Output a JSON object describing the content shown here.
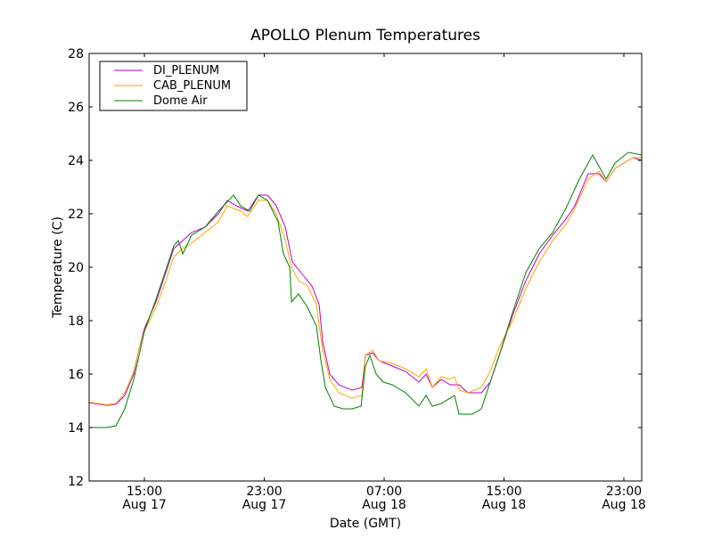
{
  "chart_data": {
    "type": "line",
    "title": "APOLLO Plenum Temperatures",
    "xlabel": "Date (GMT)",
    "ylabel": "Temperature (C)",
    "x_units": "hours since Aug 17 00:00 GMT",
    "xlim": [
      11.31,
      48.19
    ],
    "ylim": [
      12,
      28
    ],
    "yticks": [
      12,
      14,
      16,
      18,
      20,
      22,
      24,
      26,
      28
    ],
    "xticks": [
      {
        "value": 15,
        "time": "15:00",
        "date": "Aug 17"
      },
      {
        "value": 23,
        "time": "23:00",
        "date": "Aug 17"
      },
      {
        "value": 31,
        "time": "07:00",
        "date": "Aug 18"
      },
      {
        "value": 39,
        "time": "15:00",
        "date": "Aug 18"
      },
      {
        "value": 47,
        "time": "23:00",
        "date": "Aug 18"
      }
    ],
    "legend_position": "top-left",
    "grid": false,
    "series": [
      {
        "name": "DI_PLENUM",
        "color": "#bf00bf",
        "points": [
          [
            11.31,
            14.93
          ],
          [
            12.5,
            14.83
          ],
          [
            13.1,
            14.87
          ],
          [
            13.69,
            15.2
          ],
          [
            14.29,
            16.0
          ],
          [
            14.58,
            16.8
          ],
          [
            15,
            17.7
          ],
          [
            15.77,
            18.7
          ],
          [
            16.37,
            19.7
          ],
          [
            16.96,
            20.7
          ],
          [
            17.56,
            21.0
          ],
          [
            18.15,
            21.3
          ],
          [
            19.05,
            21.5
          ],
          [
            19.94,
            22.0
          ],
          [
            20.53,
            22.5
          ],
          [
            21.13,
            22.3
          ],
          [
            21.9,
            22.1
          ],
          [
            22.61,
            22.7
          ],
          [
            23.21,
            22.7
          ],
          [
            23.8,
            22.3
          ],
          [
            24.4,
            21.5
          ],
          [
            24.88,
            20.2
          ],
          [
            25.59,
            19.7
          ],
          [
            26.18,
            19.3
          ],
          [
            26.66,
            18.6
          ],
          [
            26.9,
            17.2
          ],
          [
            27.37,
            16.0
          ],
          [
            27.97,
            15.6
          ],
          [
            28.86,
            15.4
          ],
          [
            29.52,
            15.5
          ],
          [
            29.75,
            16.7
          ],
          [
            30.23,
            16.8
          ],
          [
            30.65,
            16.5
          ],
          [
            31.54,
            16.3
          ],
          [
            32.43,
            16.1
          ],
          [
            33.32,
            15.7
          ],
          [
            33.8,
            16.0
          ],
          [
            34.21,
            15.5
          ],
          [
            34.81,
            15.8
          ],
          [
            35.4,
            15.6
          ],
          [
            36.0,
            15.6
          ],
          [
            36.59,
            15.3
          ],
          [
            37.49,
            15.3
          ],
          [
            38.08,
            15.7
          ],
          [
            38.68,
            16.7
          ],
          [
            39.57,
            18.2
          ],
          [
            40.46,
            19.5
          ],
          [
            41.35,
            20.5
          ],
          [
            42.25,
            21.2
          ],
          [
            43.13,
            21.8
          ],
          [
            43.73,
            22.3
          ],
          [
            44.62,
            23.5
          ],
          [
            45.34,
            23.5
          ],
          [
            45.81,
            23.2
          ],
          [
            46.41,
            23.7
          ],
          [
            47.0,
            23.9
          ],
          [
            47.6,
            24.1
          ],
          [
            48.19,
            24.0
          ]
        ]
      },
      {
        "name": "CAB_PLENUM",
        "color": "#ffa500",
        "points": [
          [
            11.31,
            14.95
          ],
          [
            12.5,
            14.85
          ],
          [
            13.1,
            14.9
          ],
          [
            13.69,
            15.3
          ],
          [
            14.29,
            16.1
          ],
          [
            14.58,
            16.8
          ],
          [
            15,
            17.6
          ],
          [
            15.77,
            18.5
          ],
          [
            16.37,
            19.4
          ],
          [
            16.96,
            20.4
          ],
          [
            17.56,
            20.7
          ],
          [
            18.15,
            20.9
          ],
          [
            19.05,
            21.3
          ],
          [
            19.94,
            21.7
          ],
          [
            20.53,
            22.3
          ],
          [
            20.95,
            22.2
          ],
          [
            21.42,
            22.1
          ],
          [
            21.9,
            21.9
          ],
          [
            22.61,
            22.5
          ],
          [
            23.21,
            22.5
          ],
          [
            23.8,
            22.0
          ],
          [
            24.4,
            21.0
          ],
          [
            24.82,
            20.0
          ],
          [
            25.29,
            19.5
          ],
          [
            25.89,
            19.3
          ],
          [
            26.48,
            18.6
          ],
          [
            26.66,
            17.8
          ],
          [
            26.9,
            16.9
          ],
          [
            27.37,
            15.8
          ],
          [
            27.97,
            15.3
          ],
          [
            28.86,
            15.1
          ],
          [
            29.52,
            15.2
          ],
          [
            29.75,
            16.7
          ],
          [
            30.23,
            16.9
          ],
          [
            30.65,
            16.5
          ],
          [
            31.54,
            16.4
          ],
          [
            32.43,
            16.2
          ],
          [
            33.32,
            15.9
          ],
          [
            33.8,
            16.2
          ],
          [
            34.21,
            15.5
          ],
          [
            34.81,
            15.9
          ],
          [
            35.4,
            15.8
          ],
          [
            35.7,
            15.9
          ],
          [
            36.0,
            15.4
          ],
          [
            36.59,
            15.3
          ],
          [
            37.49,
            15.5
          ],
          [
            38.08,
            16.1
          ],
          [
            38.68,
            17.0
          ],
          [
            39.57,
            18.0
          ],
          [
            40.46,
            19.2
          ],
          [
            41.35,
            20.2
          ],
          [
            42.25,
            21.0
          ],
          [
            43.13,
            21.6
          ],
          [
            43.73,
            22.2
          ],
          [
            44.62,
            23.3
          ],
          [
            45.34,
            23.6
          ],
          [
            45.81,
            23.2
          ],
          [
            46.41,
            23.7
          ],
          [
            47.0,
            23.9
          ],
          [
            47.6,
            24.1
          ],
          [
            48.19,
            24.1
          ]
        ]
      },
      {
        "name": "Dome Air",
        "color": "#008000",
        "points": [
          [
            11.31,
            14.0
          ],
          [
            12.5,
            14.0
          ],
          [
            13.1,
            14.07
          ],
          [
            13.69,
            14.7
          ],
          [
            14.29,
            15.8
          ],
          [
            15,
            17.6
          ],
          [
            15.77,
            18.8
          ],
          [
            16.37,
            19.8
          ],
          [
            16.96,
            20.8
          ],
          [
            17.26,
            21.0
          ],
          [
            17.56,
            20.5
          ],
          [
            18.15,
            21.2
          ],
          [
            19.05,
            21.5
          ],
          [
            19.94,
            22.1
          ],
          [
            20.95,
            22.7
          ],
          [
            21.42,
            22.3
          ],
          [
            22.02,
            22.1
          ],
          [
            22.61,
            22.7
          ],
          [
            23.21,
            22.5
          ],
          [
            23.92,
            21.7
          ],
          [
            24.28,
            20.5
          ],
          [
            24.7,
            20.0
          ],
          [
            24.82,
            18.7
          ],
          [
            25.29,
            19.0
          ],
          [
            25.89,
            18.5
          ],
          [
            26.48,
            17.8
          ],
          [
            26.78,
            16.5
          ],
          [
            27.08,
            15.5
          ],
          [
            27.67,
            14.8
          ],
          [
            28.27,
            14.7
          ],
          [
            28.86,
            14.7
          ],
          [
            29.46,
            14.8
          ],
          [
            29.75,
            16.3
          ],
          [
            30.05,
            16.7
          ],
          [
            30.47,
            16.0
          ],
          [
            30.94,
            15.7
          ],
          [
            31.54,
            15.6
          ],
          [
            32.43,
            15.3
          ],
          [
            33.32,
            14.8
          ],
          [
            33.8,
            15.2
          ],
          [
            34.21,
            14.8
          ],
          [
            34.81,
            14.9
          ],
          [
            35.7,
            15.2
          ],
          [
            36.0,
            14.5
          ],
          [
            36.89,
            14.5
          ],
          [
            37.49,
            14.7
          ],
          [
            38.08,
            15.7
          ],
          [
            38.68,
            16.7
          ],
          [
            39.57,
            18.3
          ],
          [
            40.46,
            19.8
          ],
          [
            41.35,
            20.7
          ],
          [
            42.25,
            21.3
          ],
          [
            43.13,
            22.2
          ],
          [
            44.03,
            23.3
          ],
          [
            44.92,
            24.2
          ],
          [
            45.81,
            23.3
          ],
          [
            46.41,
            23.9
          ],
          [
            47.3,
            24.3
          ],
          [
            48.19,
            24.2
          ]
        ]
      }
    ]
  }
}
